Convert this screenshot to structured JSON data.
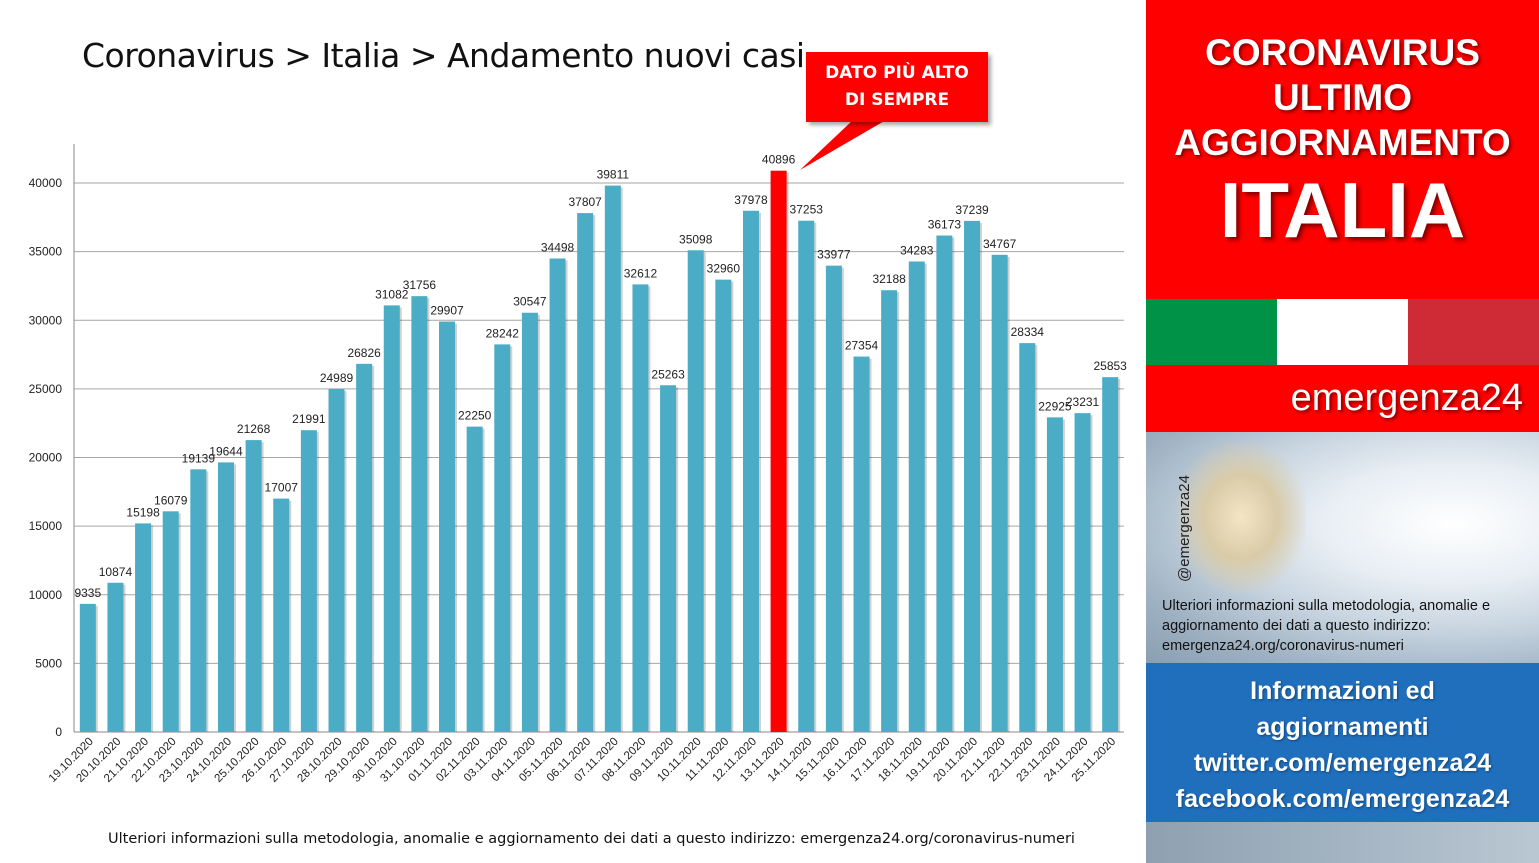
{
  "chart_title": "Coronavirus > Italia > Andamento nuovi casi",
  "callout": {
    "line1": "DATO PIÙ ALTO",
    "line2": "DI SEMPRE"
  },
  "footer_note": "Ulteriori informazioni sulla metodologia, anomalie e aggiornamento dei dati a questo indirizzo: emergenza24.org/coronavirus-numeri",
  "colors": {
    "bar": "#4bacc6",
    "highlight": "#ff0000",
    "grid": "#a6a6a6"
  },
  "chart_data": {
    "type": "bar",
    "title": "Coronavirus > Italia > Andamento nuovi casi",
    "xlabel": "",
    "ylabel": "",
    "ylim": [
      0,
      42000
    ],
    "yticks": [
      0,
      5000,
      10000,
      15000,
      20000,
      25000,
      30000,
      35000,
      40000
    ],
    "grid": true,
    "highlight_category": "13.11.2020",
    "categories": [
      "19.10.2020",
      "20.10.2020",
      "21.10.2020",
      "22.10.2020",
      "23.10.2020",
      "24.10.2020",
      "25.10.2020",
      "26.10.2020",
      "27.10.2020",
      "28.10.2020",
      "29.10.2020",
      "30.10.2020",
      "31.10.2020",
      "01.11.2020",
      "02.11.2020",
      "03.11.2020",
      "04.11.2020",
      "05.11.2020",
      "06.11.2020",
      "07.11.2020",
      "08.11.2020",
      "09.11.2020",
      "10.11.2020",
      "11.11.2020",
      "12.11.2020",
      "13.11.2020",
      "14.11.2020",
      "15.11.2020",
      "16.11.2020",
      "17.11.2020",
      "18.11.2020",
      "19.11.2020",
      "20.11.2020",
      "21.11.2020",
      "22.11.2020",
      "23.11.2020",
      "24.11.2020",
      "25.11.2020"
    ],
    "values": [
      9335,
      10874,
      15198,
      16079,
      19139,
      19644,
      21268,
      17007,
      21991,
      24989,
      26826,
      31082,
      31756,
      29907,
      22250,
      28242,
      30547,
      34498,
      37807,
      39811,
      32612,
      25263,
      35098,
      32960,
      37978,
      40896,
      37253,
      33977,
      27354,
      32188,
      34283,
      36173,
      37239,
      34767,
      28334,
      22925,
      23231,
      25853
    ]
  },
  "side": {
    "title_lines": [
      "CORONAVIRUS",
      "ULTIMO",
      "AGGIORNAMENTO"
    ],
    "country": "ITALIA",
    "flag_colors": [
      "#009246",
      "#ffffff",
      "#ce2b37"
    ],
    "brand": "emergenza24",
    "handle": "@emergenza24",
    "info_text": "Ulteriori informazioni sulla metodologia, anomalie e aggiornamento dei dati a questo indirizzo: emergenza24.org/coronavirus-numeri",
    "promo_lines": [
      "Informazioni ed",
      "aggiornamenti",
      "twitter.com/emergenza24",
      "facebook.com/emergenza24"
    ]
  }
}
